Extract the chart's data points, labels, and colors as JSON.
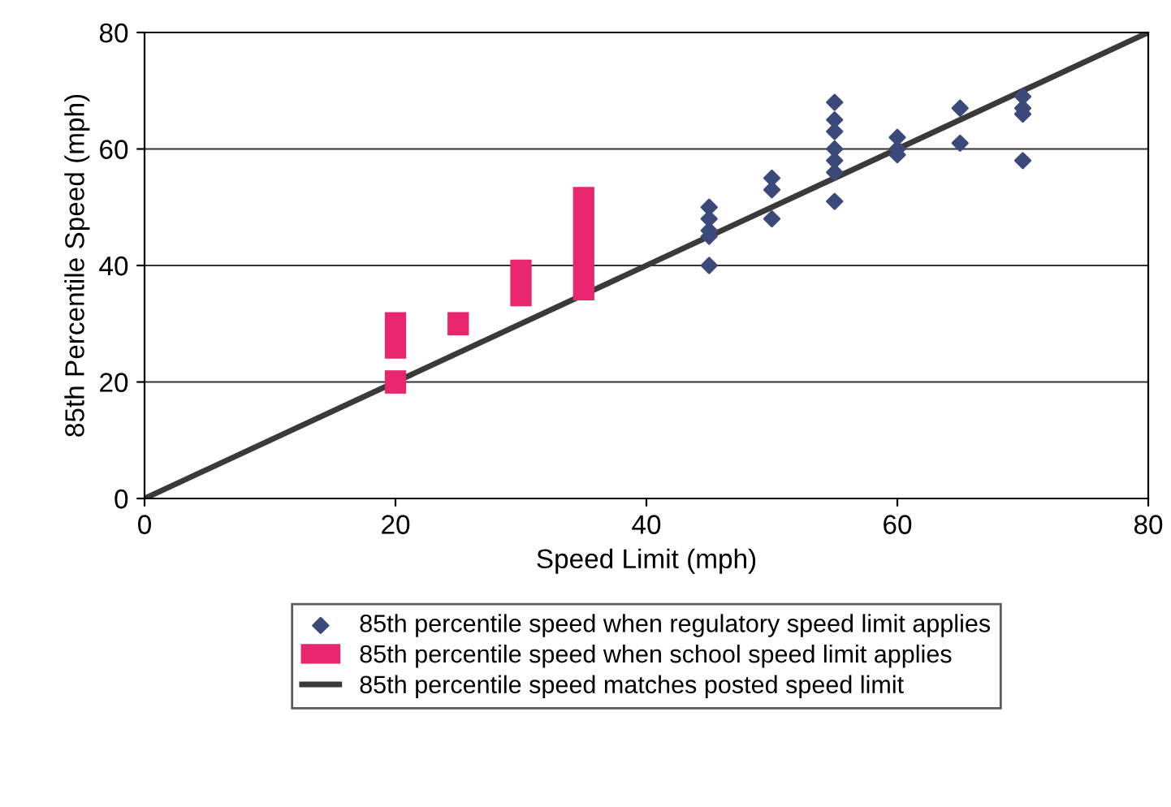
{
  "chart_data": {
    "type": "scatter",
    "xlabel": "Speed Limit (mph)",
    "ylabel": "85th Percentile Speed (mph)",
    "xlim": [
      0,
      80
    ],
    "ylim": [
      0,
      80
    ],
    "xticks": [
      0,
      20,
      40,
      60,
      80
    ],
    "yticks": [
      0,
      20,
      40,
      60,
      80
    ],
    "grid": "y",
    "legend": "bottom",
    "series": [
      {
        "name": "85th percentile speed when regulatory speed limit applies",
        "marker": "diamond",
        "color": "#3b4a7a",
        "x": [
          45,
          45,
          45,
          45,
          45,
          50,
          50,
          50,
          55,
          55,
          55,
          55,
          55,
          55,
          55,
          60,
          60,
          60,
          65,
          65,
          70,
          70,
          70,
          70
        ],
        "values": [
          50,
          48,
          46,
          45,
          40,
          55,
          53,
          48,
          68,
          65,
          63,
          60,
          58,
          56,
          51,
          62,
          60,
          59,
          67,
          61,
          69,
          67,
          66,
          58
        ]
      },
      {
        "name": "85th percentile speed when school speed limit applies",
        "type": "bar",
        "color": "#e8266e",
        "x": [
          20,
          25,
          30,
          35
        ],
        "base": [
          18,
          28,
          33,
          34
        ],
        "values": [
          4,
          4,
          8,
          19.5
        ]
      },
      {
        "type": "bar",
        "color": "#e8266e",
        "x": [
          20
        ],
        "base": [
          24
        ],
        "values": [
          8
        ]
      },
      {
        "name": "85th percentile speed matches posted speed limit",
        "type": "line",
        "color": "#3a3a3a",
        "marker": "none",
        "line_style": "solid",
        "x": [
          0,
          80
        ],
        "values": [
          0,
          80
        ]
      }
    ]
  }
}
